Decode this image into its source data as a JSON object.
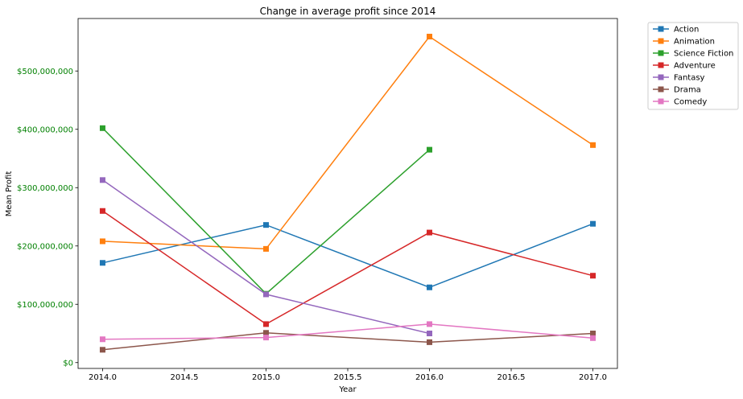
{
  "chart_data": {
    "type": "line",
    "title": "Change in average profit since 2014",
    "xlabel": "Year",
    "ylabel": "Mean Profit",
    "xlim": [
      2013.85,
      2017.15
    ],
    "ylim": [
      -10000000,
      590000000
    ],
    "x_ticks": [
      2014.0,
      2014.5,
      2015.0,
      2015.5,
      2016.0,
      2016.5,
      2017.0
    ],
    "x_tick_labels": [
      "2014.0",
      "2014.5",
      "2015.0",
      "2015.5",
      "2016.0",
      "2016.5",
      "2017.0"
    ],
    "y_ticks": [
      0,
      100000000,
      200000000,
      300000000,
      400000000,
      500000000
    ],
    "y_tick_labels": [
      "$0",
      "$100,000,000",
      "$200,000,000",
      "$300,000,000",
      "$400,000,000",
      "$500,000,000"
    ],
    "y_tick_color": "#008000",
    "grid": false,
    "legend_position": "outside top-right",
    "series": [
      {
        "name": "Action",
        "color": "#1f77b4",
        "x": [
          2014,
          2015,
          2016,
          2017
        ],
        "values": [
          171000000,
          236000000,
          129000000,
          238000000
        ]
      },
      {
        "name": "Animation",
        "color": "#ff7f0e",
        "x": [
          2014,
          2015,
          2016,
          2017
        ],
        "values": [
          208000000,
          195000000,
          559000000,
          373000000
        ]
      },
      {
        "name": "Science Fiction",
        "color": "#2ca02c",
        "x": [
          2014,
          2015,
          2016
        ],
        "values": [
          402000000,
          118000000,
          365000000
        ]
      },
      {
        "name": "Adventure",
        "color": "#d62728",
        "x": [
          2014,
          2015,
          2016,
          2017
        ],
        "values": [
          260000000,
          66000000,
          223000000,
          149000000
        ]
      },
      {
        "name": "Fantasy",
        "color": "#9467bd",
        "x": [
          2014,
          2015,
          2016
        ],
        "values": [
          313000000,
          117000000,
          50000000
        ]
      },
      {
        "name": "Drama",
        "color": "#8c564b",
        "x": [
          2014,
          2015,
          2016,
          2017
        ],
        "values": [
          22000000,
          51000000,
          35000000,
          50000000
        ]
      },
      {
        "name": "Comedy",
        "color": "#e377c2",
        "x": [
          2014,
          2015,
          2016,
          2017
        ],
        "values": [
          40000000,
          43000000,
          66000000,
          42000000
        ]
      }
    ]
  }
}
